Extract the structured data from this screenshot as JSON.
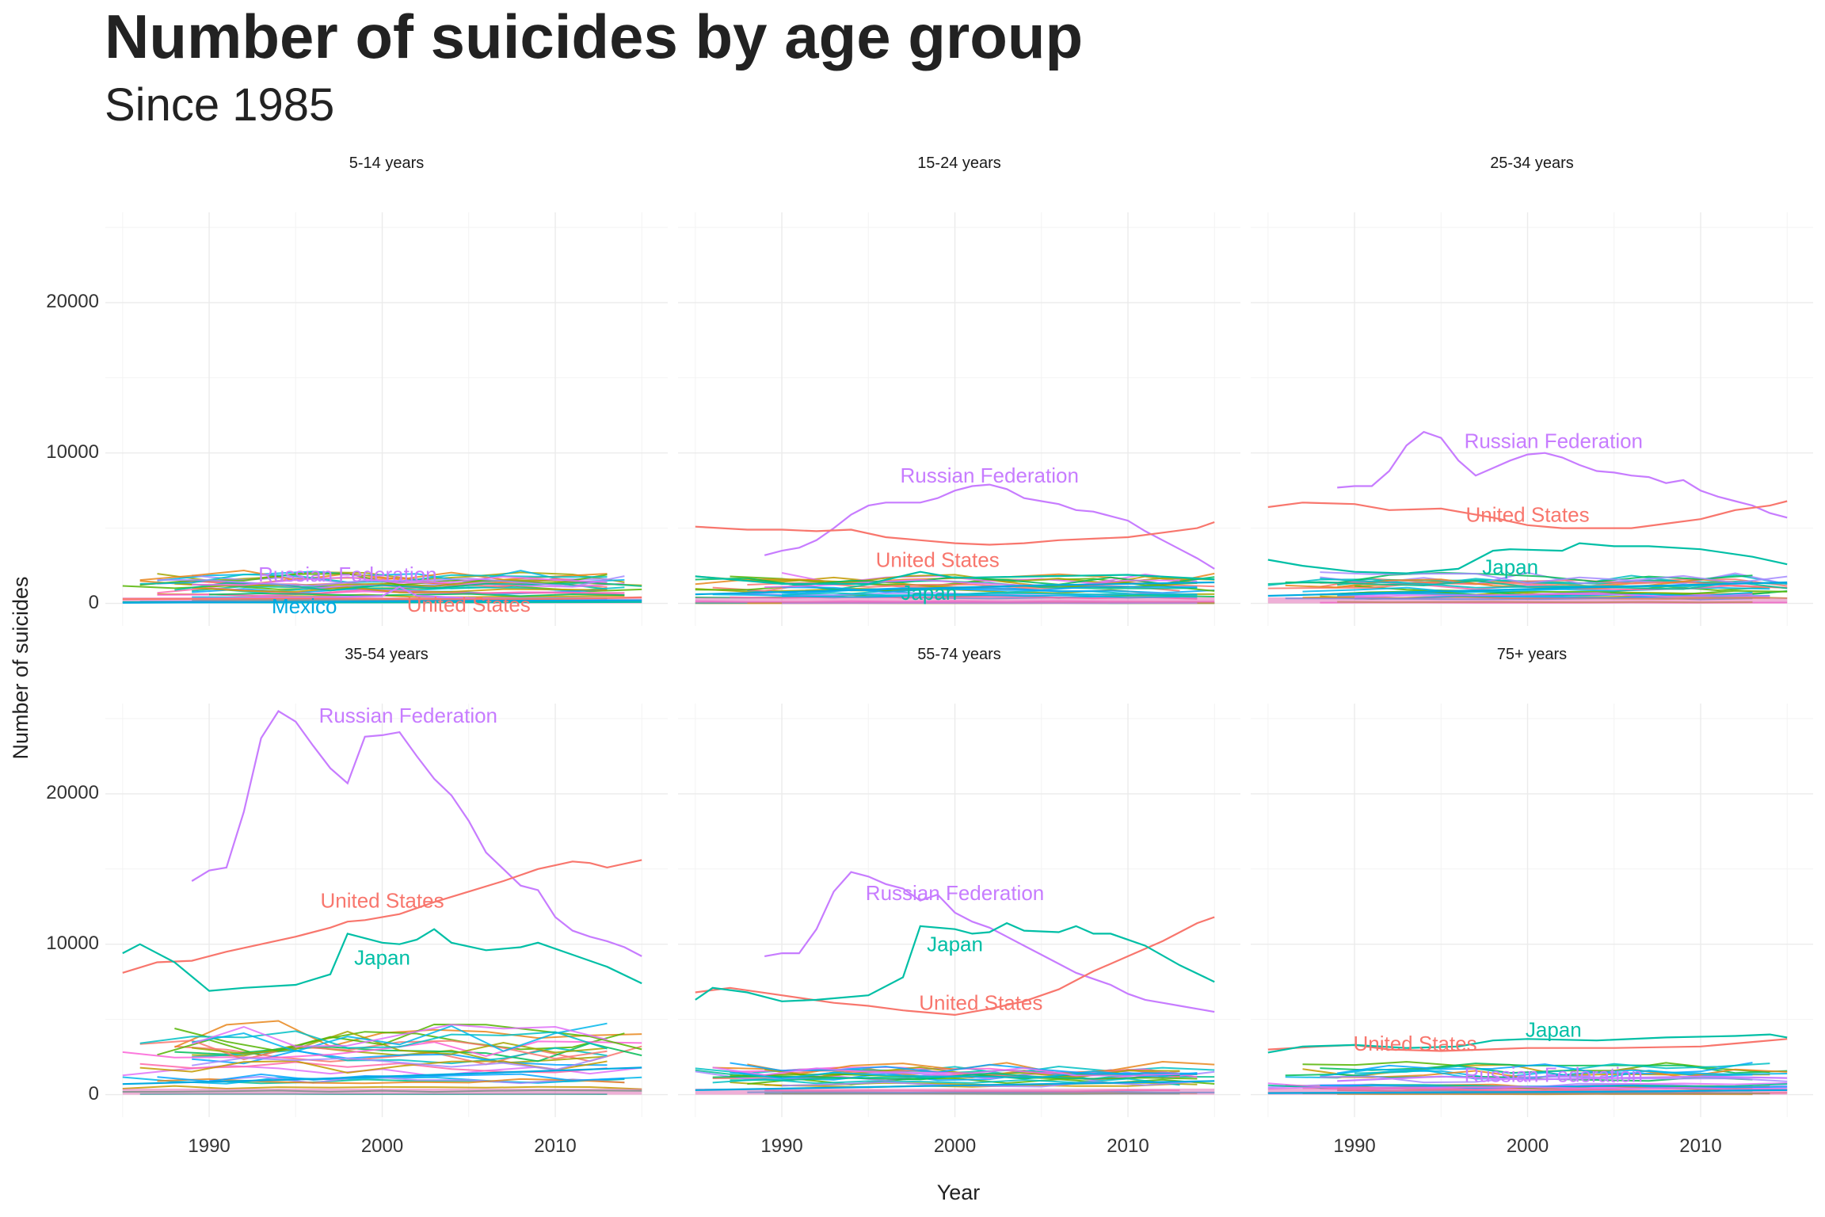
{
  "title": "Number of suicides by age group",
  "subtitle": "Since 1985",
  "axis": {
    "xlabel": "Year",
    "ylabel": "Number of suicides"
  },
  "colors": {
    "Russian Federation": "#C77CFF",
    "United States": "#F8766D",
    "Japan": "#00BFA6",
    "Mexico": "#00A9E0",
    "grid": "#ebebeb"
  },
  "chart_data": {
    "type": "line",
    "facets": [
      "5-14 years",
      "15-24 years",
      "25-34 years",
      "35-54 years",
      "55-74 years",
      "75+ years"
    ],
    "xlim": [
      1984,
      2016.5
    ],
    "ylim": [
      -1500,
      26000
    ],
    "x_ticks": [
      1990,
      2000,
      2010
    ],
    "y_ticks": [
      0,
      10000,
      20000
    ],
    "grid": true,
    "legend": "none",
    "panels": [
      {
        "facet": "5-14 years",
        "series": [
          {
            "name": "Russian Federation",
            "x": [
              1989,
              1993,
              1997,
              2000,
              2001,
              2002,
              2005,
              2010,
              2015
            ],
            "y": [
              300,
              400,
              420,
              480,
              1100,
              500,
              350,
              250,
              200
            ]
          },
          {
            "name": "United States",
            "x": [
              1985,
              1990,
              1995,
              2000,
              2005,
              2010,
              2015
            ],
            "y": [
              280,
              300,
              330,
              300,
              270,
              290,
              400
            ]
          },
          {
            "name": "Japan",
            "x": [
              1985,
              1995,
              2005,
              2015
            ],
            "y": [
              80,
              60,
              70,
              90
            ]
          },
          {
            "name": "Mexico",
            "x": [
              1985,
              1995,
              2005,
              2015
            ],
            "y": [
              40,
              100,
              170,
              200
            ]
          }
        ],
        "labels": [
          {
            "text": "Russian Federation",
            "series": "Russian Federation",
            "x": 1998,
            "y": 1800
          },
          {
            "text": "Mexico",
            "series": "Mexico",
            "x": 1995.5,
            "y": -300
          },
          {
            "text": "United States",
            "series": "United States",
            "x": 2005,
            "y": -200
          }
        ]
      },
      {
        "facet": "15-24 years",
        "series": [
          {
            "name": "Russian Federation",
            "x": [
              1989,
              1990,
              1991,
              1992,
              1993,
              1994,
              1995,
              1996,
              1997,
              1998,
              1999,
              2000,
              2001,
              2002,
              2003,
              2004,
              2005,
              2006,
              2007,
              2008,
              2009,
              2010,
              2011,
              2012,
              2013,
              2014,
              2015
            ],
            "y": [
              3200,
              3500,
              3700,
              4200,
              5000,
              5900,
              6500,
              6700,
              6700,
              6700,
              7000,
              7500,
              7800,
              7900,
              7600,
              7000,
              6800,
              6600,
              6200,
              6100,
              5800,
              5500,
              4800,
              4200,
              3600,
              3000,
              2300
            ]
          },
          {
            "name": "United States",
            "x": [
              1985,
              1988,
              1990,
              1992,
              1994,
              1996,
              1998,
              2000,
              2002,
              2004,
              2006,
              2008,
              2010,
              2012,
              2014,
              2015
            ],
            "y": [
              5100,
              4900,
              4900,
              4800,
              4900,
              4400,
              4200,
              4000,
              3900,
              4000,
              4200,
              4300,
              4400,
              4700,
              5000,
              5400
            ]
          },
          {
            "name": "Japan",
            "x": [
              1985,
              1990,
              1995,
              1998,
              2000,
              2005,
              2010,
              2015
            ],
            "y": [
              1800,
              1300,
              1300,
              2100,
              1700,
              1800,
              1900,
              1600
            ]
          },
          {
            "name": "Mexico",
            "x": [
              1985,
              1995,
              2005,
              2015
            ],
            "y": [
              600,
              900,
              1200,
              1400
            ]
          }
        ],
        "labels": [
          {
            "text": "Russian Federation",
            "series": "Russian Federation",
            "x": 2002,
            "y": 8400
          },
          {
            "text": "United States",
            "series": "United States",
            "x": 1999,
            "y": 2800
          },
          {
            "text": "Japan",
            "series": "Japan",
            "x": 1998.5,
            "y": 600
          }
        ]
      },
      {
        "facet": "25-34 years",
        "series": [
          {
            "name": "Russian Federation",
            "x": [
              1989,
              1990,
              1991,
              1992,
              1993,
              1994,
              1995,
              1996,
              1997,
              1998,
              1999,
              2000,
              2001,
              2002,
              2003,
              2004,
              2005,
              2006,
              2007,
              2008,
              2009,
              2010,
              2011,
              2012,
              2013,
              2014,
              2015
            ],
            "y": [
              7700,
              7800,
              7800,
              8800,
              10500,
              11400,
              11000,
              9500,
              8500,
              9000,
              9500,
              9900,
              10000,
              9700,
              9200,
              8800,
              8700,
              8500,
              8400,
              8000,
              8200,
              7500,
              7100,
              6800,
              6500,
              6000,
              5700
            ]
          },
          {
            "name": "United States",
            "x": [
              1985,
              1987,
              1990,
              1992,
              1995,
              1998,
              2000,
              2002,
              2004,
              2006,
              2008,
              2010,
              2012,
              2014,
              2015
            ],
            "y": [
              6400,
              6700,
              6600,
              6200,
              6300,
              5700,
              5200,
              5000,
              5000,
              5000,
              5300,
              5600,
              6200,
              6500,
              6800
            ]
          },
          {
            "name": "Japan",
            "x": [
              1985,
              1987,
              1990,
              1993,
              1996,
              1998,
              1999,
              2002,
              2003,
              2005,
              2007,
              2010,
              2013,
              2015
            ],
            "y": [
              2900,
              2500,
              2100,
              2000,
              2300,
              3500,
              3600,
              3500,
              4000,
              3800,
              3800,
              3600,
              3100,
              2600
            ]
          },
          {
            "name": "Mexico",
            "x": [
              1985,
              1995,
              2005,
              2015
            ],
            "y": [
              500,
              800,
              1100,
              1400
            ]
          }
        ],
        "labels": [
          {
            "text": "Russian Federation",
            "series": "Russian Federation",
            "x": 2001.5,
            "y": 10700
          },
          {
            "text": "United States",
            "series": "United States",
            "x": 2000,
            "y": 5800
          },
          {
            "text": "Japan",
            "series": "Japan",
            "x": 1999,
            "y": 2300
          }
        ]
      },
      {
        "facet": "35-54 years",
        "series": [
          {
            "name": "Russian Federation",
            "x": [
              1989,
              1990,
              1991,
              1992,
              1993,
              1994,
              1995,
              1996,
              1997,
              1998,
              1999,
              2000,
              2001,
              2002,
              2003,
              2004,
              2005,
              2006,
              2007,
              2008,
              2009,
              2010,
              2011,
              2012,
              2013,
              2014,
              2015
            ],
            "y": [
              14200,
              14900,
              15100,
              18800,
              23700,
              25500,
              24800,
              23200,
              21700,
              20700,
              23800,
              23900,
              24100,
              22500,
              21000,
              19900,
              18200,
              16100,
              15000,
              13900,
              13600,
              11800,
              10900,
              10500,
              10200,
              9800,
              9200
            ]
          },
          {
            "name": "United States",
            "x": [
              1985,
              1987,
              1989,
              1991,
              1993,
              1995,
              1997,
              1998,
              1999,
              2001,
              2003,
              2005,
              2007,
              2009,
              2011,
              2012,
              2013,
              2015
            ],
            "y": [
              8100,
              8800,
              8900,
              9500,
              10000,
              10500,
              11100,
              11500,
              11600,
              12000,
              12800,
              13500,
              14200,
              15000,
              15500,
              15400,
              15100,
              15600
            ]
          },
          {
            "name": "Japan",
            "x": [
              1985,
              1986,
              1988,
              1990,
              1992,
              1995,
              1997,
              1998,
              2000,
              2001,
              2002,
              2003,
              2004,
              2006,
              2008,
              2009,
              2011,
              2013,
              2015
            ],
            "y": [
              9400,
              10000,
              8800,
              6900,
              7100,
              7300,
              8000,
              10700,
              10100,
              10000,
              10300,
              11000,
              10100,
              9600,
              9800,
              10100,
              9300,
              8500,
              7400
            ]
          },
          {
            "name": "Mexico",
            "x": [
              1985,
              1995,
              2005,
              2015
            ],
            "y": [
              700,
              1000,
              1400,
              1800
            ]
          }
        ],
        "labels": [
          {
            "text": "Russian Federation",
            "series": "Russian Federation",
            "x": 2001.5,
            "y": 25100
          },
          {
            "text": "United States",
            "series": "United States",
            "x": 2000,
            "y": 12800
          },
          {
            "text": "Japan",
            "series": "Japan",
            "x": 2000,
            "y": 9000
          }
        ]
      },
      {
        "facet": "55-74 years",
        "series": [
          {
            "name": "Russian Federation",
            "x": [
              1989,
              1990,
              1991,
              1992,
              1993,
              1994,
              1995,
              1996,
              1997,
              1998,
              1999,
              2000,
              2001,
              2002,
              2003,
              2004,
              2005,
              2006,
              2007,
              2008,
              2009,
              2010,
              2011,
              2012,
              2013,
              2014,
              2015
            ],
            "y": [
              9200,
              9400,
              9400,
              11000,
              13500,
              14800,
              14500,
              14000,
              13700,
              12900,
              13300,
              12100,
              11500,
              11100,
              10500,
              9900,
              9300,
              8700,
              8100,
              7700,
              7300,
              6700,
              6300,
              6100,
              5900,
              5700,
              5500
            ]
          },
          {
            "name": "United States",
            "x": [
              1985,
              1987,
              1990,
              1993,
              1995,
              1997,
              1999,
              2000,
              2002,
              2004,
              2006,
              2008,
              2010,
              2012,
              2014,
              2015
            ],
            "y": [
              6800,
              7100,
              6600,
              6100,
              5900,
              5600,
              5400,
              5300,
              5700,
              6200,
              7000,
              8200,
              9200,
              10200,
              11400,
              11800
            ]
          },
          {
            "name": "Japan",
            "x": [
              1985,
              1986,
              1988,
              1990,
              1992,
              1995,
              1997,
              1998,
              2000,
              2001,
              2002,
              2003,
              2004,
              2006,
              2007,
              2008,
              2009,
              2011,
              2013,
              2015
            ],
            "y": [
              6300,
              7100,
              6800,
              6200,
              6300,
              6600,
              7800,
              11200,
              11000,
              10700,
              10800,
              11400,
              10900,
              10800,
              11200,
              10700,
              10700,
              9900,
              8600,
              7500
            ]
          },
          {
            "name": "Mexico",
            "x": [
              1985,
              1995,
              2005,
              2015
            ],
            "y": [
              300,
              500,
              700,
              900
            ]
          }
        ],
        "labels": [
          {
            "text": "Russian Federation",
            "series": "Russian Federation",
            "x": 2000,
            "y": 13300
          },
          {
            "text": "Japan",
            "series": "Japan",
            "x": 2000,
            "y": 9900
          },
          {
            "text": "United States",
            "series": "United States",
            "x": 2001.5,
            "y": 6000
          }
        ]
      },
      {
        "facet": "75+ years",
        "series": [
          {
            "name": "Russian Federation",
            "x": [
              1989,
              1993,
              1995,
              2000,
              2005,
              2010,
              2015
            ],
            "y": [
              900,
              1100,
              1200,
              1000,
              1100,
              1200,
              1100
            ]
          },
          {
            "name": "United States",
            "x": [
              1985,
              1988,
              1990,
              1992,
              1995,
              2000,
              2005,
              2010,
              2013,
              2015
            ],
            "y": [
              3000,
              3200,
              3300,
              3000,
              2900,
              3100,
              3100,
              3200,
              3500,
              3700
            ]
          },
          {
            "name": "Japan",
            "x": [
              1985,
              1987,
              1990,
              1993,
              1996,
              1998,
              2000,
              2004,
              2008,
              2012,
              2014,
              2015
            ],
            "y": [
              2800,
              3200,
              3300,
              3100,
              3200,
              3600,
              3700,
              3600,
              3800,
              3900,
              4000,
              3800
            ]
          },
          {
            "name": "Mexico",
            "x": [
              1985,
              1995,
              2005,
              2015
            ],
            "y": [
              100,
              150,
              200,
              300
            ]
          }
        ],
        "labels": [
          {
            "text": "Japan",
            "series": "Japan",
            "x": 2001.5,
            "y": 4200
          },
          {
            "text": "United States",
            "series": "United States",
            "x": 1993.5,
            "y": 3300
          },
          {
            "text": "Russian Federation",
            "series": "Russian Federation",
            "x": 2001.5,
            "y": 1200
          }
        ]
      }
    ]
  }
}
